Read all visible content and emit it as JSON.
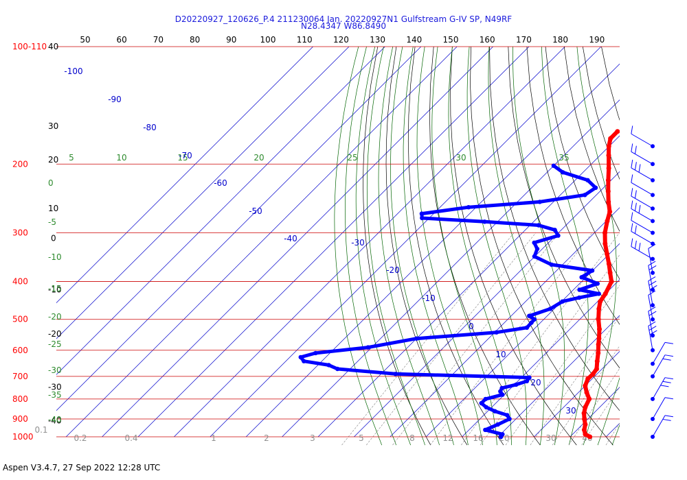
{
  "header": {
    "line1": "D20220927_120626_P.4 211230064 Jan. 20220927N1 Gulfstream G-IV SP, N49RF",
    "line2": "N28.4347 W86.8490"
  },
  "footer": "Aspen V3.4.7, 27 Sep 2022  12:28 UTC",
  "colors": {
    "temperature": "#ff0000",
    "dewpoint": "#0000ff",
    "isobar": "#cc0000",
    "isotherm": "#0000cc",
    "dry_adiabat": "#000000",
    "moist_adiabat": "#006400",
    "mixing_ratio": "#006400",
    "height": "#000000"
  },
  "chart_data": {
    "type": "skew-t log-p",
    "pressure_range_hpa": [
      100,
      1000
    ],
    "temperature_top_labels_F": [
      50,
      60,
      70,
      80,
      90,
      100,
      110,
      120,
      130,
      140,
      150,
      160,
      170,
      180,
      190
    ],
    "pressure_labels": [
      {
        "text": "100-110",
        "p": 100
      },
      {
        "text": "200",
        "p": 200
      },
      {
        "text": "300",
        "p": 300
      },
      {
        "text": "400",
        "p": 400
      },
      {
        "text": "500",
        "p": 500
      },
      {
        "text": "600",
        "p": 600
      },
      {
        "text": "700",
        "p": 700
      },
      {
        "text": "800",
        "p": 800
      },
      {
        "text": "900",
        "p": 900
      },
      {
        "text": "1000",
        "p": 1000
      }
    ],
    "height_labels": [
      {
        "text": "40",
        "p": 100
      },
      {
        "text": "30",
        "p": 160
      },
      {
        "text": "20",
        "p": 195
      },
      {
        "text": "10",
        "p": 260
      },
      {
        "text": "0",
        "p": 310
      },
      {
        "text": "-10",
        "p": 420
      },
      {
        "text": "-20",
        "p": 545
      },
      {
        "text": "-30",
        "p": 745
      },
      {
        "text": "-40",
        "p": 910
      }
    ],
    "isotherm_labels_C": [
      -100,
      -90,
      -80,
      -70,
      -60,
      -50,
      -40,
      -30,
      -20,
      -10,
      0,
      10,
      20,
      30
    ],
    "theta_e_labels_left": [
      0,
      -5,
      -10,
      -15,
      -20,
      -25,
      -30,
      -35,
      -40
    ],
    "theta_e_labels_top": [
      5,
      10,
      15,
      20,
      25,
      30,
      35
    ],
    "mixing_ratio_labels": [
      "0.1",
      "0.2",
      "0.4",
      "1",
      "2",
      "3",
      "5",
      "8",
      "12",
      "16",
      "20",
      "30",
      "40"
    ],
    "temperature_profile_C": [
      {
        "p": 1000,
        "t": 25.5
      },
      {
        "p": 985,
        "t": 23.5
      },
      {
        "p": 960,
        "t": 22.0
      },
      {
        "p": 930,
        "t": 20.8
      },
      {
        "p": 900,
        "t": 19.0
      },
      {
        "p": 870,
        "t": 17.3
      },
      {
        "p": 840,
        "t": 16.0
      },
      {
        "p": 800,
        "t": 14.8
      },
      {
        "p": 770,
        "t": 12.3
      },
      {
        "p": 740,
        "t": 10.0
      },
      {
        "p": 710,
        "t": 8.8
      },
      {
        "p": 690,
        "t": 8.9
      },
      {
        "p": 670,
        "t": 8.5
      },
      {
        "p": 640,
        "t": 6.5
      },
      {
        "p": 610,
        "t": 4.5
      },
      {
        "p": 580,
        "t": 2.2
      },
      {
        "p": 560,
        "t": 0.7
      },
      {
        "p": 530,
        "t": -1.8
      },
      {
        "p": 500,
        "t": -4.8
      },
      {
        "p": 470,
        "t": -7.6
      },
      {
        "p": 450,
        "t": -9.3
      },
      {
        "p": 430,
        "t": -10.0
      },
      {
        "p": 400,
        "t": -11.7
      },
      {
        "p": 380,
        "t": -14.5
      },
      {
        "p": 360,
        "t": -17.4
      },
      {
        "p": 340,
        "t": -20.6
      },
      {
        "p": 320,
        "t": -24.0
      },
      {
        "p": 300,
        "t": -27.1
      },
      {
        "p": 280,
        "t": -29.7
      },
      {
        "p": 265,
        "t": -31.6
      },
      {
        "p": 250,
        "t": -34.7
      },
      {
        "p": 235,
        "t": -37.7
      },
      {
        "p": 220,
        "t": -40.8
      },
      {
        "p": 205,
        "t": -44.0
      },
      {
        "p": 190,
        "t": -47.6
      },
      {
        "p": 180,
        "t": -50.1
      },
      {
        "p": 172,
        "t": -51.8
      },
      {
        "p": 165,
        "t": -51.8
      }
    ],
    "dewpoint_profile_C": [
      {
        "p": 1000,
        "t": 0.8
      },
      {
        "p": 985,
        "t": 0.5
      },
      {
        "p": 960,
        "t": -5.5
      },
      {
        "p": 930,
        "t": -3.5
      },
      {
        "p": 900,
        "t": -1.8
      },
      {
        "p": 880,
        "t": -3.5
      },
      {
        "p": 860,
        "t": -8.0
      },
      {
        "p": 840,
        "t": -11.5
      },
      {
        "p": 820,
        "t": -14.0
      },
      {
        "p": 800,
        "t": -14.0
      },
      {
        "p": 780,
        "t": -10.5
      },
      {
        "p": 765,
        "t": -12.0
      },
      {
        "p": 750,
        "t": -12.5
      },
      {
        "p": 735,
        "t": -9.5
      },
      {
        "p": 720,
        "t": -7.5
      },
      {
        "p": 705,
        "t": -7.8
      },
      {
        "p": 690,
        "t": -46.0
      },
      {
        "p": 670,
        "t": -63.5
      },
      {
        "p": 655,
        "t": -67.0
      },
      {
        "p": 640,
        "t": -75.0
      },
      {
        "p": 625,
        "t": -77.0
      },
      {
        "p": 610,
        "t": -74.0
      },
      {
        "p": 590,
        "t": -61.0
      },
      {
        "p": 560,
        "t": -50.0
      },
      {
        "p": 540,
        "t": -29.5
      },
      {
        "p": 525,
        "t": -22.4
      },
      {
        "p": 510,
        "t": -22.5
      },
      {
        "p": 500,
        "t": -22.6
      },
      {
        "p": 490,
        "t": -25.0
      },
      {
        "p": 470,
        "t": -21.1
      },
      {
        "p": 450,
        "t": -19.8
      },
      {
        "p": 440,
        "t": -16.2
      },
      {
        "p": 430,
        "t": -11.8
      },
      {
        "p": 420,
        "t": -18.3
      },
      {
        "p": 405,
        "t": -15.0
      },
      {
        "p": 390,
        "t": -21.2
      },
      {
        "p": 375,
        "t": -20.1
      },
      {
        "p": 362,
        "t": -33.1
      },
      {
        "p": 345,
        "t": -40.1
      },
      {
        "p": 330,
        "t": -41.4
      },
      {
        "p": 318,
        "t": -44.0
      },
      {
        "p": 305,
        "t": -39.3
      },
      {
        "p": 295,
        "t": -41.8
      },
      {
        "p": 287,
        "t": -47.6
      },
      {
        "p": 281,
        "t": -63.6
      },
      {
        "p": 275,
        "t": -82.0
      },
      {
        "p": 268,
        "t": -83.3
      },
      {
        "p": 258,
        "t": -72.1
      },
      {
        "p": 250,
        "t": -53.8
      },
      {
        "p": 240,
        "t": -43.2
      },
      {
        "p": 230,
        "t": -42.2
      },
      {
        "p": 220,
        "t": -46.5
      },
      {
        "p": 210,
        "t": -55.6
      },
      {
        "p": 202,
        "t": -60.0
      }
    ],
    "wind_barb_pressures": [
      180,
      200,
      220,
      240,
      260,
      280,
      300,
      320,
      350,
      380,
      420,
      460,
      500,
      550,
      600,
      650,
      700,
      800,
      900,
      1000
    ]
  }
}
